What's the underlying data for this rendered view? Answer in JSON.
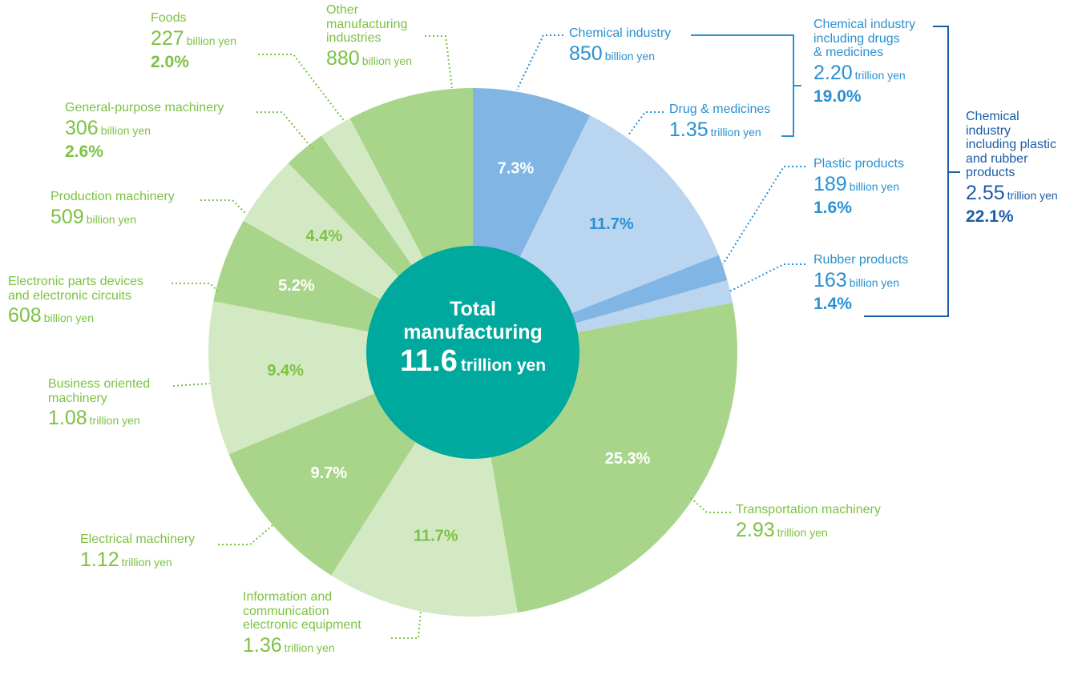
{
  "chart_data": {
    "type": "pie",
    "center_label": {
      "title": "Total\nmanufacturing",
      "amount": "11.6",
      "unit": "trillion yen"
    },
    "categories": [
      "Chemical industry",
      "Drug & medicines",
      "Plastic products",
      "Rubber products",
      "Transportation machinery",
      "Information and\ncommunication\nelectronic equipment",
      "Electrical machinery",
      "Business oriented\nmachinery",
      "Electronic parts devices\nand electronic circuits",
      "Production machinery",
      "General-purpose machinery",
      "Foods",
      "Other\nmanufacturing\nindustries"
    ],
    "values": [
      7.3,
      11.7,
      1.6,
      1.4,
      25.3,
      11.7,
      9.7,
      9.4,
      5.2,
      4.4,
      2.6,
      2.0,
      7.7
    ],
    "value_labels": [
      "7.3%",
      "11.7%",
      "1.6%",
      "1.4%",
      "25.3%",
      "11.7%",
      "9.7%",
      "9.4%",
      "5.2%",
      "4.4%",
      "2.6%",
      "2.0%",
      null
    ],
    "amount_labels": [
      "850",
      "1.35",
      "189",
      "163",
      "2.93",
      "1.36",
      "1.12",
      "1.08",
      "608",
      "509",
      "306",
      "227",
      "880"
    ],
    "amount_units": [
      "billion yen",
      "trillion yen",
      "billion yen",
      "billion yen",
      "trillion yen",
      "trillion yen",
      "trillion yen",
      "trillion yen",
      "billion yen",
      "billion yen",
      "billion yen",
      "billion yen",
      "billion yen"
    ],
    "colors": [
      "#80b5e4",
      "#bad5f0",
      "#80b5e4",
      "#bad5f0",
      "#a9d58b",
      "#d3e9c4",
      "#a9d58b",
      "#d3e9c4",
      "#a9d58b",
      "#d3e9c4",
      "#a9d58b",
      "#d3e9c4",
      "#a9d58b"
    ],
    "groups": [
      {
        "name": "Chemical industry\nincluding drugs\n& medicines",
        "amount": "2.20",
        "unit": "trillion yen",
        "value_label": "19.0%"
      },
      {
        "name": "Chemical\nindustry\nincluding plastic\nand rubber\nproducts",
        "amount": "2.55",
        "unit": "trillion yen",
        "value_label": "22.1%"
      }
    ]
  }
}
